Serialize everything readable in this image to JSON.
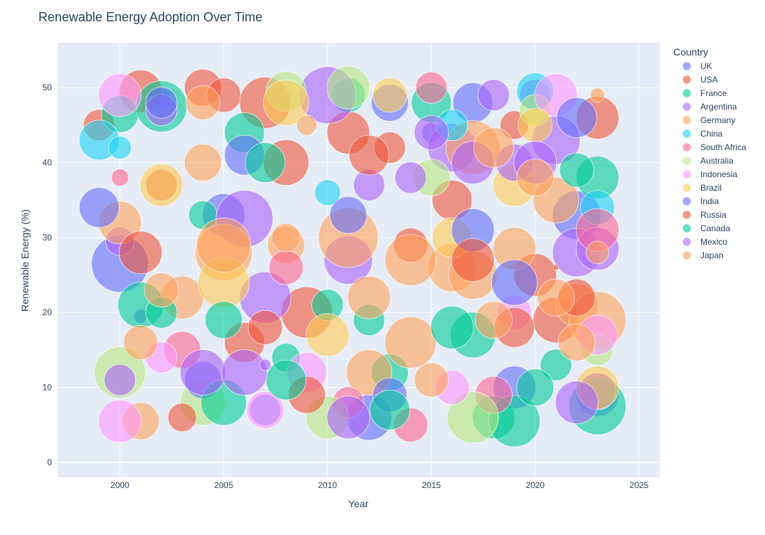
{
  "chart_data": {
    "type": "scatter",
    "title": "Renewable Energy Adoption Over Time",
    "xlabel": "Year",
    "ylabel": "Renewable Energy (%)",
    "xlim": [
      1997,
      2026
    ],
    "ylim": [
      -2,
      56
    ],
    "x_ticks": [
      2000,
      2005,
      2010,
      2015,
      2020,
      2025
    ],
    "y_ticks": [
      0,
      10,
      20,
      30,
      40,
      50
    ],
    "grid": true,
    "legend_title": "Country",
    "legend_position": "right",
    "marker_opacity": 0.6,
    "series": [
      {
        "name": "UK",
        "color": "#636efa",
        "points": [
          [
            2000,
            26.5,
            40
          ],
          [
            2001,
            19.5,
            10
          ],
          [
            2002,
            48.5,
            14
          ],
          [
            2005,
            33,
            30
          ],
          [
            2007,
            7,
            22
          ],
          [
            2012,
            6,
            32
          ],
          [
            2013,
            48,
            26
          ],
          [
            2015,
            44,
            14
          ],
          [
            2017,
            48,
            28
          ],
          [
            2019,
            10,
            30
          ],
          [
            2022,
            33,
            34
          ],
          [
            2023,
            9,
            30
          ]
        ]
      },
      {
        "name": "USA",
        "color": "#ef553b",
        "points": [
          [
            1999,
            45,
            22
          ],
          [
            2001,
            49.5,
            30
          ],
          [
            2002,
            37,
            22
          ],
          [
            2004,
            50,
            26
          ],
          [
            2005,
            49,
            24
          ],
          [
            2007,
            48,
            36
          ],
          [
            2008,
            40,
            32
          ],
          [
            2009,
            20,
            36
          ],
          [
            2011,
            44,
            30
          ],
          [
            2013,
            42,
            22
          ],
          [
            2016,
            35,
            28
          ],
          [
            2019,
            45,
            20
          ],
          [
            2020,
            25,
            30
          ],
          [
            2021,
            19,
            32
          ],
          [
            2023,
            46,
            30
          ]
        ]
      },
      {
        "name": "France",
        "color": "#00cc96",
        "points": [
          [
            2000,
            46.5,
            26
          ],
          [
            2002,
            47.5,
            36
          ],
          [
            2004,
            33,
            20
          ],
          [
            2006,
            44,
            28
          ],
          [
            2008,
            14,
            20
          ],
          [
            2010,
            21,
            22
          ],
          [
            2011,
            49,
            24
          ],
          [
            2013,
            12,
            26
          ],
          [
            2015,
            48,
            28
          ],
          [
            2017,
            17,
            32
          ],
          [
            2018,
            6,
            30
          ],
          [
            2019,
            5.5,
            36
          ],
          [
            2021,
            13,
            22
          ],
          [
            2023,
            7.5,
            40
          ],
          [
            2023,
            38,
            30
          ]
        ]
      },
      {
        "name": "Argentina",
        "color": "#ab63fa",
        "points": [
          [
            2000,
            29.5,
            20
          ],
          [
            2002,
            47,
            22
          ],
          [
            2006,
            32.5,
            40
          ],
          [
            2007,
            22,
            36
          ],
          [
            2010,
            49,
            40
          ],
          [
            2011,
            27,
            34
          ],
          [
            2012,
            37,
            22
          ],
          [
            2016,
            42,
            34
          ],
          [
            2018,
            49,
            22
          ],
          [
            2020,
            49,
            22
          ],
          [
            2021,
            43,
            34
          ],
          [
            2022,
            28,
            34
          ],
          [
            2023,
            28.5,
            30
          ],
          [
            2023,
            9.5,
            26
          ]
        ]
      },
      {
        "name": "Germany",
        "color": "#ffa15a",
        "points": [
          [
            2000,
            32,
            30
          ],
          [
            2001,
            5.5,
            26
          ],
          [
            2003,
            22,
            30
          ],
          [
            2004,
            40,
            26
          ],
          [
            2005,
            28,
            40
          ],
          [
            2008,
            29,
            26
          ],
          [
            2011,
            30,
            42
          ],
          [
            2012,
            12,
            32
          ],
          [
            2014,
            16,
            36
          ],
          [
            2016,
            26,
            34
          ],
          [
            2017,
            42,
            38
          ],
          [
            2017,
            25,
            34
          ],
          [
            2019,
            28.5,
            30
          ],
          [
            2021,
            35,
            32
          ],
          [
            2022,
            21,
            30
          ],
          [
            2023,
            19,
            40
          ],
          [
            2023,
            49,
            10
          ]
        ]
      },
      {
        "name": "China",
        "color": "#19d3f3",
        "points": [
          [
            1999,
            43,
            28
          ],
          [
            2000,
            42,
            16
          ],
          [
            2010,
            36,
            18
          ],
          [
            2016,
            45,
            22
          ],
          [
            2020,
            49.5,
            26
          ],
          [
            2023,
            34,
            24
          ]
        ]
      },
      {
        "name": "South Africa",
        "color": "#ff6692",
        "points": [
          [
            2000,
            38,
            12
          ],
          [
            2003,
            15,
            26
          ],
          [
            2008,
            26,
            24
          ],
          [
            2011,
            8,
            22
          ],
          [
            2014,
            5,
            24
          ],
          [
            2015,
            50,
            22
          ],
          [
            2018,
            9,
            26
          ],
          [
            2023,
            31,
            30
          ]
        ]
      },
      {
        "name": "Australia",
        "color": "#b6e880",
        "points": [
          [
            2000,
            12,
            36
          ],
          [
            2004,
            8,
            32
          ],
          [
            2008,
            49.5,
            28
          ],
          [
            2010,
            6,
            30
          ],
          [
            2011,
            50,
            30
          ],
          [
            2015,
            38,
            26
          ],
          [
            2017,
            6,
            36
          ],
          [
            2020,
            47,
            22
          ],
          [
            2023,
            15,
            22
          ]
        ]
      },
      {
        "name": "Indonesia",
        "color": "#ff97ff",
        "points": [
          [
            2000,
            49,
            30
          ],
          [
            2000,
            5.5,
            30
          ],
          [
            2002,
            14,
            22
          ],
          [
            2007,
            7,
            26
          ],
          [
            2009,
            12,
            28
          ],
          [
            2016,
            10,
            24
          ],
          [
            2019,
            20,
            24
          ],
          [
            2021,
            49,
            30
          ],
          [
            2023,
            17,
            28
          ]
        ]
      },
      {
        "name": "Brazil",
        "color": "#fecb52",
        "points": [
          [
            2002,
            37,
            30
          ],
          [
            2005,
            24,
            36
          ],
          [
            2008,
            48,
            32
          ],
          [
            2010,
            17,
            30
          ],
          [
            2013,
            49,
            24
          ],
          [
            2016,
            30,
            28
          ],
          [
            2019,
            37,
            30
          ],
          [
            2020,
            45,
            24
          ],
          [
            2023,
            10,
            30
          ]
        ]
      },
      {
        "name": "India",
        "color": "#636efa",
        "points": [
          [
            1999,
            34,
            28
          ],
          [
            2002,
            48,
            22
          ],
          [
            2004,
            11,
            26
          ],
          [
            2006,
            41,
            28
          ],
          [
            2011,
            33,
            26
          ],
          [
            2013,
            9,
            24
          ],
          [
            2017,
            31,
            30
          ],
          [
            2019,
            24,
            32
          ],
          [
            2022,
            46,
            28
          ]
        ]
      },
      {
        "name": "Russia",
        "color": "#ef553b",
        "points": [
          [
            2001,
            28,
            30
          ],
          [
            2003,
            6,
            20
          ],
          [
            2006,
            16,
            28
          ],
          [
            2007,
            18,
            24
          ],
          [
            2009,
            9,
            26
          ],
          [
            2012,
            41,
            28
          ],
          [
            2014,
            29,
            24
          ],
          [
            2017,
            27,
            30
          ],
          [
            2019,
            18,
            28
          ],
          [
            2021,
            26,
            4
          ],
          [
            2022,
            22,
            26
          ]
        ]
      },
      {
        "name": "Canada",
        "color": "#00cc96",
        "points": [
          [
            2001,
            21,
            32
          ],
          [
            2002,
            20,
            22
          ],
          [
            2005,
            19,
            26
          ],
          [
            2005,
            8,
            32
          ],
          [
            2007,
            40,
            28
          ],
          [
            2008,
            11,
            28
          ],
          [
            2012,
            19,
            22
          ],
          [
            2013,
            7,
            28
          ],
          [
            2016,
            18,
            30
          ],
          [
            2020,
            10,
            26
          ],
          [
            2022,
            39,
            24
          ]
        ]
      },
      {
        "name": "Mexico",
        "color": "#ab63fa",
        "points": [
          [
            2000,
            11,
            22
          ],
          [
            2004,
            12,
            32
          ],
          [
            2006,
            12,
            32
          ],
          [
            2007,
            13,
            8
          ],
          [
            2011,
            6,
            30
          ],
          [
            2014,
            38,
            22
          ],
          [
            2015,
            44,
            24
          ],
          [
            2017,
            40,
            30
          ],
          [
            2019,
            40,
            26
          ],
          [
            2020,
            40,
            30
          ],
          [
            2022,
            8,
            30
          ]
        ]
      },
      {
        "name": "Japan",
        "color": "#ffa15a",
        "points": [
          [
            2001,
            16,
            24
          ],
          [
            2002,
            23,
            24
          ],
          [
            2004,
            48,
            24
          ],
          [
            2005,
            29,
            38
          ],
          [
            2008,
            30,
            20
          ],
          [
            2009,
            45,
            14
          ],
          [
            2012,
            22,
            30
          ],
          [
            2014,
            27,
            36
          ],
          [
            2015,
            11,
            24
          ],
          [
            2018,
            42,
            28
          ],
          [
            2018,
            19,
            26
          ],
          [
            2020,
            38,
            26
          ],
          [
            2021,
            22,
            26
          ],
          [
            2022,
            16,
            26
          ],
          [
            2023,
            28,
            16
          ]
        ]
      }
    ]
  }
}
